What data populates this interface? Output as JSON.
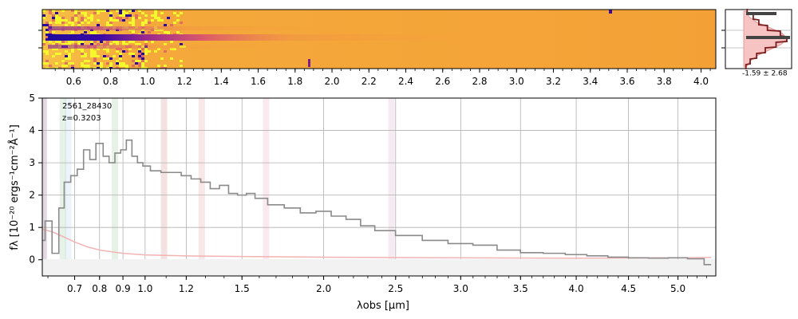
{
  "chart_data": [
    {
      "panel": "2d-spectrum",
      "type": "heatmap",
      "colormap": "plasma_r",
      "colors": {
        "low": "#2a0aa0",
        "mid": "#d6447a",
        "high": "#f7a634",
        "saturated": "#f5f82a"
      },
      "xlabel": "",
      "ylabel": "",
      "x_tick_labels": [
        "0.6",
        "0.8",
        "1.0",
        "1.2",
        "1.4",
        "1.6",
        "1.8",
        "2.0",
        "2.2",
        "2.4",
        "2.6",
        "2.8",
        "3.0",
        "3.2",
        "3.4",
        "3.6",
        "3.8",
        "4.0"
      ],
      "x_ticks": [
        0.6,
        0.8,
        1.0,
        1.2,
        1.4,
        1.6,
        1.8,
        2.0,
        2.2,
        2.4,
        2.6,
        2.8,
        3.0,
        3.2,
        3.4,
        3.6,
        3.8,
        4.0
      ],
      "trace_rows_relative": [
        -0.35,
        0.0,
        0.22
      ],
      "bright_end_um": 1.0,
      "fade_end_um": 2.2
    },
    {
      "panel": "pixel-histogram",
      "type": "area",
      "annotation": "-1.59 ± 2.68",
      "fill_color": "#f7c4c4",
      "line_color": "#7a1c1c",
      "profile": [
        0.05,
        0.12,
        0.3,
        0.62,
        0.9,
        1.0,
        0.86,
        0.58,
        0.3,
        0.14,
        0.06
      ],
      "data_curve": [
        0.08,
        0.22,
        0.35,
        0.55,
        0.85,
        1.0,
        0.75,
        0.5,
        0.3,
        0.15,
        0.05
      ],
      "dark_bar_offsets": [
        0.15,
        -0.05
      ]
    },
    {
      "panel": "1d-spectrum",
      "type": "line",
      "label_id": "2561_28430",
      "label_z": "z=0.3203",
      "xlabel": "λobs [μm]",
      "ylabel": "fλ [10⁻²⁰ ergs⁻¹cm⁻²Å⁻¹]",
      "ylim": [
        -0.5,
        5
      ],
      "y_ticks": [
        0,
        1,
        2,
        3,
        4,
        5
      ],
      "x_ticks": [
        0.7,
        0.8,
        0.9,
        1.0,
        1.2,
        1.5,
        2.0,
        2.5,
        3.0,
        3.5,
        4.0,
        4.5,
        5.0
      ],
      "x_tick_labels": [
        "0.7",
        "0.8",
        "0.9",
        "1.0",
        "1.2",
        "1.5",
        "2.0",
        "2.5",
        "3.0",
        "3.5",
        "4.0",
        "4.5",
        "5.0"
      ],
      "x_scale": "sqrt",
      "xlim": [
        0.58,
        5.4
      ],
      "grid": true,
      "colors": {
        "flux": "#8a8a8a",
        "error": "#f2b3b3",
        "axis": "#000000",
        "grid": "#b0b0b0"
      },
      "line_bands": [
        {
          "x": 0.585,
          "color": "#6a3d6a"
        },
        {
          "x": 0.655,
          "color": "#7fbf7f"
        },
        {
          "x": 0.675,
          "color": "#9ecae1"
        },
        {
          "x": 0.865,
          "color": "#7fbf7f"
        },
        {
          "x": 1.09,
          "color": "#c96f6f"
        },
        {
          "x": 1.28,
          "color": "#e08080"
        },
        {
          "x": 1.64,
          "color": "#e88fa8"
        },
        {
          "x": 2.47,
          "color": "#d29ac0"
        }
      ],
      "flux": {
        "x": [
          0.58,
          0.6,
          0.63,
          0.65,
          0.67,
          0.7,
          0.72,
          0.75,
          0.77,
          0.8,
          0.83,
          0.85,
          0.88,
          0.9,
          0.93,
          0.95,
          0.98,
          1.0,
          1.05,
          1.1,
          1.15,
          1.2,
          1.25,
          1.3,
          1.35,
          1.4,
          1.45,
          1.5,
          1.55,
          1.6,
          1.7,
          1.8,
          1.9,
          2.0,
          2.1,
          2.2,
          2.3,
          2.4,
          2.6,
          2.8,
          3.0,
          3.2,
          3.4,
          3.6,
          3.8,
          4.0,
          4.2,
          4.4,
          4.6,
          4.8,
          5.0,
          5.2,
          5.35
        ],
        "y": [
          0.6,
          1.2,
          0.2,
          1.6,
          2.4,
          2.6,
          2.8,
          3.4,
          3.1,
          3.6,
          3.2,
          3.0,
          3.3,
          3.4,
          3.7,
          3.2,
          3.0,
          2.9,
          2.75,
          2.7,
          2.7,
          2.6,
          2.5,
          2.4,
          2.2,
          2.3,
          2.05,
          2.0,
          2.05,
          1.9,
          1.7,
          1.6,
          1.45,
          1.5,
          1.35,
          1.25,
          1.05,
          0.9,
          0.75,
          0.6,
          0.5,
          0.45,
          0.3,
          0.22,
          0.2,
          0.16,
          0.12,
          0.08,
          0.06,
          0.05,
          0.06,
          0.03,
          -0.15
        ]
      },
      "error": {
        "x": [
          0.58,
          0.62,
          0.66,
          0.7,
          0.75,
          0.8,
          0.9,
          1.0,
          1.2,
          1.5,
          2.0,
          3.0,
          4.0,
          5.0,
          5.35
        ],
        "y": [
          0.95,
          0.85,
          0.7,
          0.55,
          0.4,
          0.3,
          0.2,
          0.15,
          0.12,
          0.1,
          0.08,
          0.06,
          0.05,
          0.06,
          0.07
        ]
      }
    }
  ]
}
